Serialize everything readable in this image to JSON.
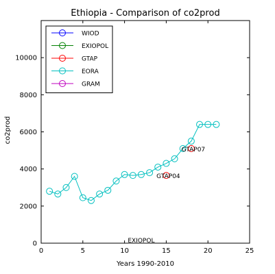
{
  "chart_data": {
    "type": "line",
    "title": "Ethiopia - Comparison of co2prod",
    "xlabel": "Years 1990-2010",
    "ylabel": "co2prod",
    "xlim": [
      0,
      25
    ],
    "ylim": [
      0,
      12000
    ],
    "xticks": [
      0,
      5,
      10,
      15,
      20,
      25
    ],
    "yticks": [
      0,
      2000,
      4000,
      6000,
      8000,
      10000
    ],
    "grid": false,
    "legend_position": "top-left",
    "series": [
      {
        "name": "WIOD",
        "color": "#0000ff",
        "x": [],
        "y": []
      },
      {
        "name": "EXIOPOL",
        "color": "#008000",
        "x": [],
        "y": []
      },
      {
        "name": "GTAP",
        "color": "#ff0000",
        "x": [
          15,
          18
        ],
        "y": [
          3650,
          5100
        ]
      },
      {
        "name": "EORA",
        "color": "#00bfbf",
        "x": [
          1,
          2,
          3,
          4,
          5,
          6,
          7,
          8,
          9,
          10,
          11,
          12,
          13,
          14,
          15,
          16,
          17,
          18,
          19,
          20,
          21
        ],
        "y": [
          2800,
          2650,
          3000,
          3600,
          2450,
          2300,
          2650,
          2850,
          3350,
          3700,
          3650,
          3700,
          3800,
          4100,
          4300,
          4550,
          5100,
          5500,
          6400,
          6400,
          6400
        ]
      },
      {
        "name": "GRAM",
        "color": "#bf00bf",
        "x": [],
        "y": []
      }
    ],
    "annotations": [
      {
        "text": "GTAP04",
        "x": 14.9,
        "y": 3650
      },
      {
        "text": "GTAP07",
        "x": 17.9,
        "y": 5100
      },
      {
        "text": "EXIOPOL",
        "x": 12,
        "y": 0
      }
    ]
  }
}
